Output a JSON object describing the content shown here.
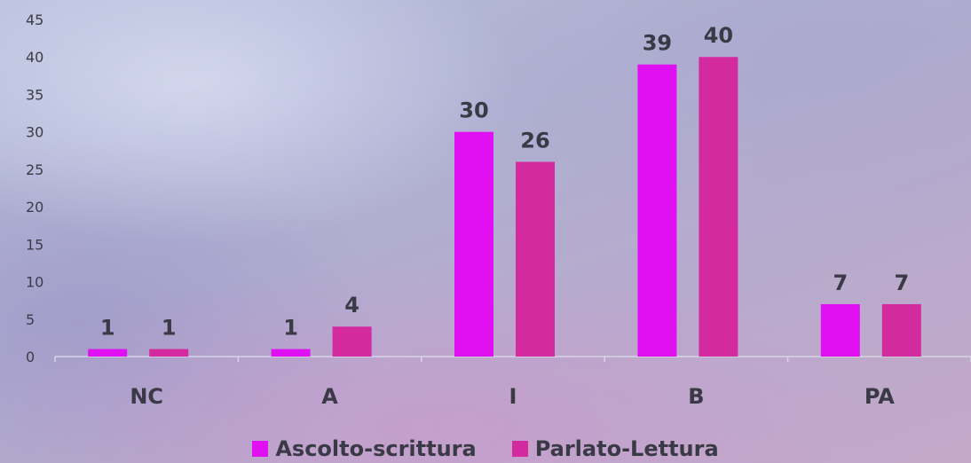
{
  "chart_data": {
    "type": "bar",
    "categories": [
      "NC",
      "A",
      "I",
      "B",
      "PA"
    ],
    "series": [
      {
        "name": "Ascolto-scrittura",
        "values": [
          1,
          1,
          30,
          39,
          7
        ],
        "color": "#e010f2"
      },
      {
        "name": "Parlato-Lettura",
        "values": [
          1,
          4,
          26,
          40,
          7
        ],
        "color": "#d32b9f"
      }
    ],
    "ylim": [
      0,
      45
    ],
    "yticks": [
      0,
      5,
      10,
      15,
      20,
      25,
      30,
      35,
      40,
      45
    ],
    "grid": false,
    "legend": "bottom",
    "data_labels": true
  }
}
